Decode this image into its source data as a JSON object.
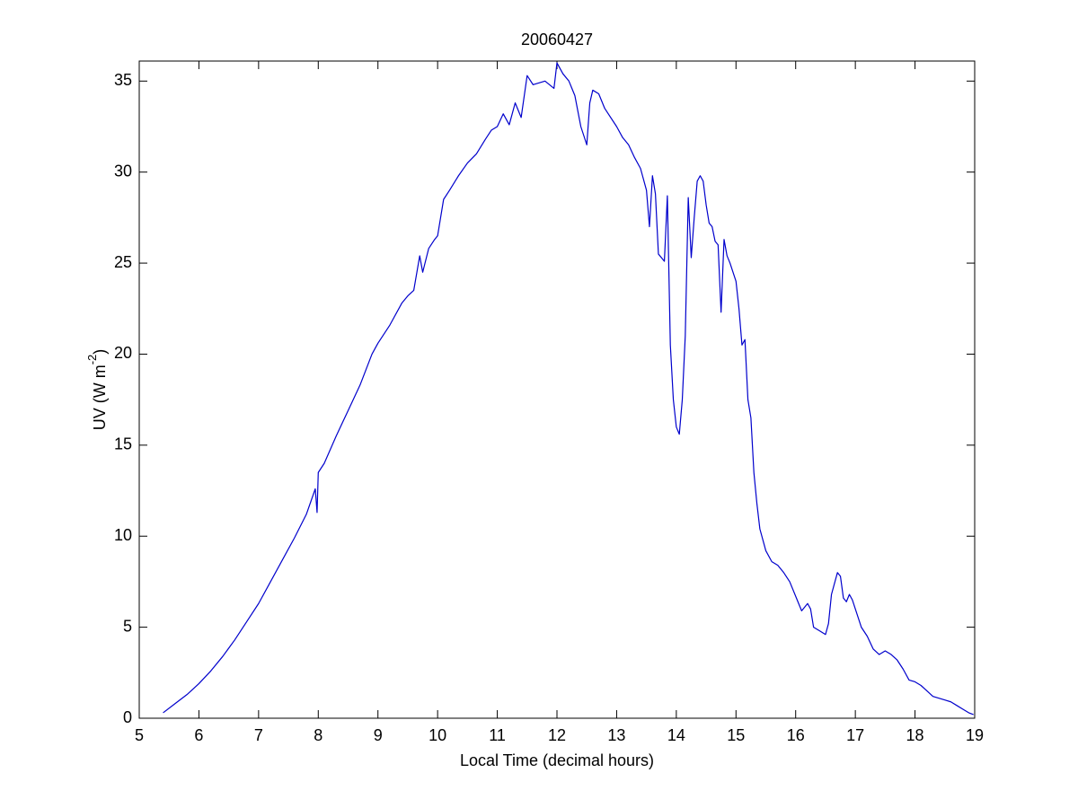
{
  "chart_data": {
    "type": "line",
    "title": "20060427",
    "xlabel": "Local Time (decimal hours)",
    "ylabel": [
      "UV (W m",
      "-2",
      ")"
    ],
    "xlim": [
      5,
      19
    ],
    "ylim": [
      0,
      36.1
    ],
    "xticks": [
      5,
      6,
      7,
      8,
      9,
      10,
      11,
      12,
      13,
      14,
      15,
      16,
      17,
      18,
      19
    ],
    "yticks": [
      0,
      5,
      10,
      15,
      20,
      25,
      30,
      35
    ],
    "x": [
      5.4,
      5.6,
      5.8,
      6.0,
      6.2,
      6.4,
      6.6,
      6.8,
      7.0,
      7.2,
      7.4,
      7.6,
      7.8,
      7.95,
      7.98,
      8.0,
      8.1,
      8.3,
      8.5,
      8.7,
      8.9,
      9.0,
      9.2,
      9.4,
      9.5,
      9.6,
      9.7,
      9.75,
      9.85,
      9.95,
      10.0,
      10.1,
      10.2,
      10.35,
      10.5,
      10.65,
      10.8,
      10.9,
      11.0,
      11.1,
      11.2,
      11.3,
      11.4,
      11.5,
      11.6,
      11.8,
      11.95,
      12.0,
      12.1,
      12.2,
      12.3,
      12.4,
      12.5,
      12.55,
      12.6,
      12.7,
      12.8,
      13.0,
      13.1,
      13.2,
      13.3,
      13.4,
      13.5,
      13.55,
      13.6,
      13.65,
      13.7,
      13.8,
      13.85,
      13.9,
      13.95,
      14.0,
      14.05,
      14.1,
      14.15,
      14.2,
      14.25,
      14.3,
      14.35,
      14.4,
      14.45,
      14.5,
      14.55,
      14.6,
      14.65,
      14.7,
      14.75,
      14.8,
      14.85,
      14.9,
      15.0,
      15.05,
      15.1,
      15.15,
      15.2,
      15.25,
      15.3,
      15.35,
      15.4,
      15.5,
      15.6,
      15.7,
      15.8,
      15.9,
      16.0,
      16.1,
      16.2,
      16.25,
      16.3,
      16.4,
      16.5,
      16.55,
      16.6,
      16.7,
      16.75,
      16.8,
      16.85,
      16.9,
      16.95,
      17.0,
      17.1,
      17.2,
      17.3,
      17.4,
      17.5,
      17.6,
      17.7,
      17.8,
      17.9,
      18.0,
      18.1,
      18.2,
      18.3,
      18.4,
      18.5,
      18.6,
      18.7,
      18.8,
      18.9,
      18.98
    ],
    "series": [
      {
        "color": "#0000cc",
        "values": [
          0.3,
          0.8,
          1.3,
          1.9,
          2.6,
          3.4,
          4.3,
          5.3,
          6.3,
          7.5,
          8.7,
          9.9,
          11.2,
          12.6,
          11.3,
          13.5,
          14.0,
          15.5,
          16.9,
          18.3,
          20.0,
          20.6,
          21.6,
          22.8,
          23.2,
          23.5,
          25.4,
          24.5,
          25.8,
          26.3,
          26.5,
          28.5,
          29.0,
          29.8,
          30.5,
          31.0,
          31.8,
          32.3,
          32.5,
          33.2,
          32.6,
          33.8,
          33.0,
          35.3,
          34.8,
          35.0,
          34.6,
          36.0,
          35.4,
          35.0,
          34.2,
          32.5,
          31.5,
          33.8,
          34.5,
          34.3,
          33.5,
          32.5,
          31.9,
          31.5,
          30.8,
          30.2,
          29.0,
          27.0,
          29.8,
          28.8,
          25.5,
          25.1,
          28.7,
          20.5,
          17.5,
          16.0,
          15.6,
          17.5,
          21.0,
          28.6,
          25.3,
          27.5,
          29.5,
          29.8,
          29.5,
          28.2,
          27.2,
          27.0,
          26.2,
          26.0,
          22.3,
          26.3,
          25.4,
          25.0,
          24.0,
          22.5,
          20.5,
          20.8,
          17.5,
          16.5,
          13.5,
          11.8,
          10.4,
          9.2,
          8.6,
          8.4,
          8.0,
          7.5,
          6.7,
          5.9,
          6.3,
          6.0,
          5.0,
          4.8,
          4.6,
          5.2,
          6.8,
          8.0,
          7.8,
          6.6,
          6.4,
          6.8,
          6.5,
          6.0,
          5.0,
          4.5,
          3.8,
          3.5,
          3.7,
          3.5,
          3.2,
          2.7,
          2.1,
          2.0,
          1.8,
          1.5,
          1.2,
          1.1,
          1.0,
          0.9,
          0.7,
          0.5,
          0.3,
          0.2
        ]
      }
    ]
  }
}
